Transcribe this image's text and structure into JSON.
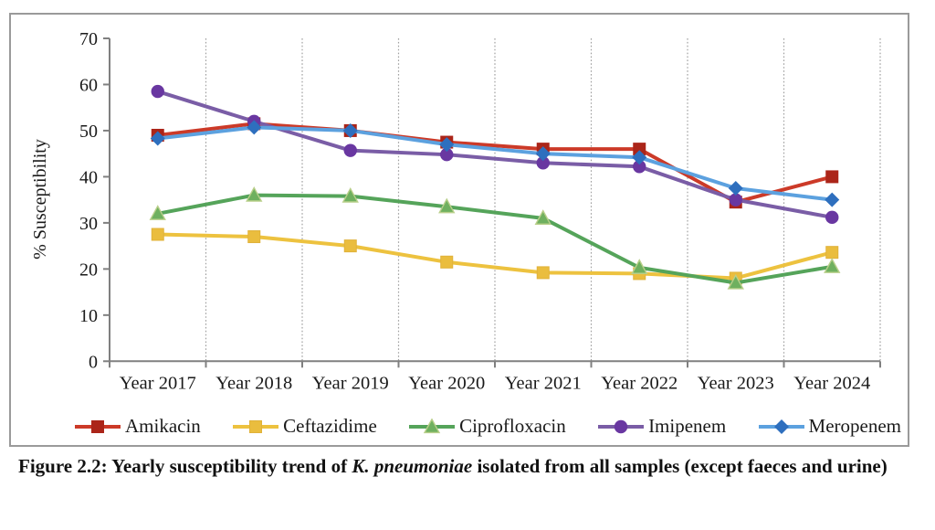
{
  "figure": {
    "caption_prefix": "Figure 2.2: Yearly susceptibility trend of ",
    "caption_italic": "K. pneumoniae",
    "caption_suffix": " isolated from all samples (except faeces and urine)"
  },
  "chart_data": {
    "type": "line",
    "title": "",
    "xlabel": "",
    "ylabel": "% Susceptibility",
    "ylim": [
      0,
      70
    ],
    "yticks": [
      0,
      10,
      20,
      30,
      40,
      50,
      60,
      70
    ],
    "grid": "vertical-dotted-category-boundaries",
    "legend_position": "bottom",
    "categories": [
      "Year 2017",
      "Year 2018",
      "Year 2019",
      "Year 2020",
      "Year 2021",
      "Year 2022",
      "Year 2023",
      "Year 2024"
    ],
    "series": [
      {
        "name": "Amikacin",
        "marker": "square",
        "line_color": "#cc3a28",
        "marker_color": "#ab2519",
        "marker_edge": "#ab2519",
        "values": [
          49,
          51.5,
          50,
          47.5,
          46,
          46,
          34.5,
          40
        ]
      },
      {
        "name": "Ceftazidime",
        "marker": "square",
        "line_color": "#edc23f",
        "marker_color": "#eabd3e",
        "marker_edge": "#e0b23a",
        "values": [
          27.5,
          27,
          25,
          21.5,
          19.2,
          19,
          18,
          23.6
        ]
      },
      {
        "name": "Ciprofloxacin",
        "marker": "triangle",
        "line_color": "#55a45a",
        "marker_color": "#6fb05f",
        "marker_edge": "#b9cf8a",
        "values": [
          32,
          36,
          35.8,
          33.5,
          31,
          20.3,
          17,
          20.5
        ]
      },
      {
        "name": "Imipenem",
        "marker": "circle",
        "line_color": "#7a5da6",
        "marker_color": "#6937a1",
        "marker_edge": "#6937a1",
        "values": [
          58.5,
          52,
          45.7,
          44.8,
          43,
          42.2,
          35,
          31.2
        ]
      },
      {
        "name": "Meropenem",
        "marker": "diamond",
        "line_color": "#5ca1df",
        "marker_color": "#2e6fbe",
        "marker_edge": "#2e6fbe",
        "values": [
          48.3,
          50.7,
          50,
          47,
          45,
          44.2,
          37.5,
          35
        ]
      }
    ],
    "axis_color": "#808080",
    "gridline_color": "#a0a0a0",
    "tick_label_color": "#1a1a1a"
  }
}
